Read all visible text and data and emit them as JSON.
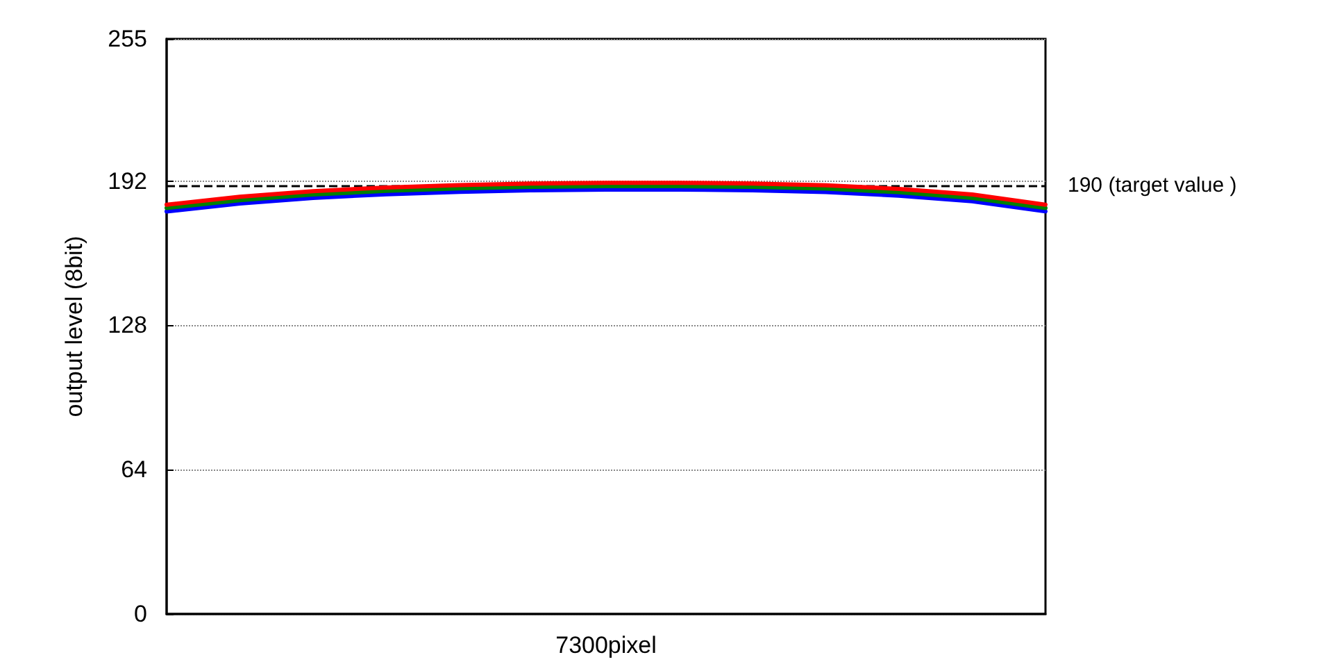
{
  "chart_data": {
    "type": "line",
    "xlabel": "7300pixel",
    "ylabel": "output level (8bit)",
    "categories": [
      null,
      null,
      null,
      null,
      null,
      null,
      null,
      null,
      null,
      null,
      null,
      null,
      null
    ],
    "series": [
      {
        "color": "#ff0000",
        "values": [
          181.5,
          185,
          187.5,
          189.1,
          190.2,
          190.9,
          191.2,
          191.2,
          190.9,
          190.1,
          188.5,
          186,
          181.5
        ]
      },
      {
        "color": "#008000",
        "values": [
          180,
          183.5,
          186,
          187.6,
          188.7,
          189.4,
          189.7,
          189.7,
          189.4,
          188.6,
          187,
          184.5,
          180
        ]
      },
      {
        "color": "#0000ff",
        "values": [
          178.5,
          182,
          184.5,
          186.1,
          187.2,
          187.9,
          188.2,
          188.2,
          187.9,
          187.1,
          185.5,
          183,
          178.5
        ]
      }
    ],
    "ylim": [
      0,
      255
    ],
    "yticks": [
      0,
      64,
      128,
      192,
      255
    ],
    "grid": "y",
    "marker": "none",
    "line_style": "solid",
    "ref_lines": [
      {
        "axis": "y",
        "value": 190,
        "label": "190 (target value )",
        "color": "#000000",
        "line_style": "dashed"
      }
    ]
  }
}
